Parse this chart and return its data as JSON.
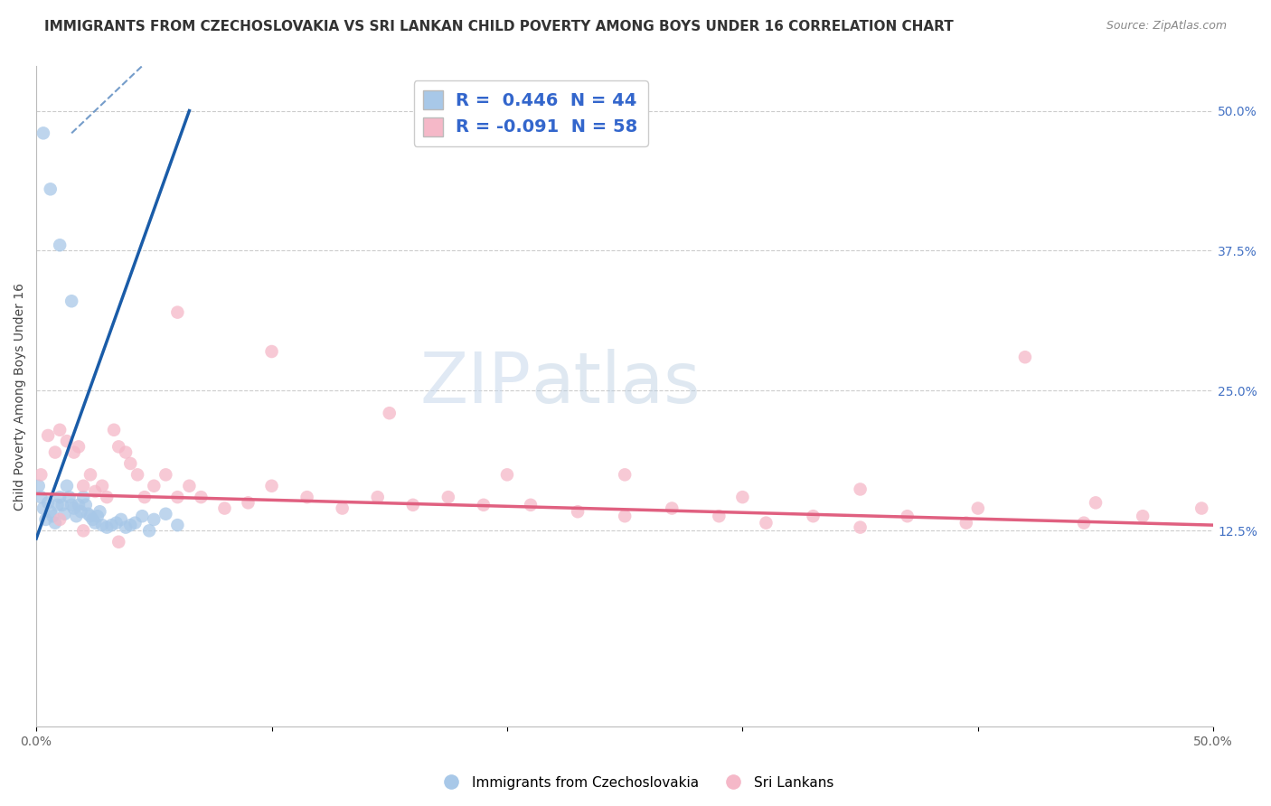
{
  "title": "IMMIGRANTS FROM CZECHOSLOVAKIA VS SRI LANKAN CHILD POVERTY AMONG BOYS UNDER 16 CORRELATION CHART",
  "source": "Source: ZipAtlas.com",
  "ylabel": "Child Poverty Among Boys Under 16",
  "xlim": [
    0.0,
    0.5
  ],
  "ylim": [
    -0.05,
    0.54
  ],
  "yticks_right": [
    0.125,
    0.25,
    0.375,
    0.5
  ],
  "ytick_right_labels": [
    "12.5%",
    "25.0%",
    "37.5%",
    "50.0%"
  ],
  "blue_color": "#a8c8e8",
  "pink_color": "#f5b8c8",
  "blue_line_color": "#1a5ca8",
  "pink_line_color": "#e06080",
  "background_color": "#ffffff",
  "grid_color": "#cccccc",
  "title_fontsize": 11,
  "axis_label_fontsize": 10,
  "tick_fontsize": 10,
  "legend_fontsize": 13,
  "blue_scatter_x": [
    0.001,
    0.002,
    0.003,
    0.004,
    0.005,
    0.006,
    0.007,
    0.008,
    0.009,
    0.01,
    0.011,
    0.012,
    0.013,
    0.014,
    0.015,
    0.016,
    0.017,
    0.018,
    0.019,
    0.02,
    0.021,
    0.022,
    0.023,
    0.024,
    0.025,
    0.026,
    0.027,
    0.028,
    0.03,
    0.032,
    0.034,
    0.036,
    0.038,
    0.04,
    0.042,
    0.045,
    0.048,
    0.05,
    0.055,
    0.06,
    0.003,
    0.006,
    0.01,
    0.015
  ],
  "blue_scatter_y": [
    0.165,
    0.155,
    0.145,
    0.135,
    0.15,
    0.142,
    0.138,
    0.132,
    0.148,
    0.155,
    0.148,
    0.14,
    0.165,
    0.155,
    0.148,
    0.145,
    0.138,
    0.148,
    0.142,
    0.155,
    0.148,
    0.14,
    0.138,
    0.135,
    0.132,
    0.138,
    0.142,
    0.13,
    0.128,
    0.13,
    0.132,
    0.135,
    0.128,
    0.13,
    0.132,
    0.138,
    0.125,
    0.135,
    0.14,
    0.13,
    0.48,
    0.43,
    0.38,
    0.33
  ],
  "pink_scatter_x": [
    0.002,
    0.005,
    0.008,
    0.01,
    0.013,
    0.016,
    0.018,
    0.02,
    0.023,
    0.025,
    0.028,
    0.03,
    0.033,
    0.035,
    0.038,
    0.04,
    0.043,
    0.046,
    0.05,
    0.055,
    0.06,
    0.065,
    0.07,
    0.08,
    0.09,
    0.1,
    0.115,
    0.13,
    0.145,
    0.16,
    0.175,
    0.19,
    0.21,
    0.23,
    0.25,
    0.27,
    0.29,
    0.31,
    0.33,
    0.35,
    0.37,
    0.395,
    0.42,
    0.445,
    0.47,
    0.495,
    0.01,
    0.02,
    0.035,
    0.06,
    0.1,
    0.2,
    0.3,
    0.4,
    0.15,
    0.25,
    0.35,
    0.45
  ],
  "pink_scatter_y": [
    0.175,
    0.21,
    0.195,
    0.215,
    0.205,
    0.195,
    0.2,
    0.165,
    0.175,
    0.16,
    0.165,
    0.155,
    0.215,
    0.2,
    0.195,
    0.185,
    0.175,
    0.155,
    0.165,
    0.175,
    0.155,
    0.165,
    0.155,
    0.145,
    0.15,
    0.165,
    0.155,
    0.145,
    0.155,
    0.148,
    0.155,
    0.148,
    0.148,
    0.142,
    0.138,
    0.145,
    0.138,
    0.132,
    0.138,
    0.128,
    0.138,
    0.132,
    0.28,
    0.132,
    0.138,
    0.145,
    0.135,
    0.125,
    0.115,
    0.32,
    0.285,
    0.175,
    0.155,
    0.145,
    0.23,
    0.175,
    0.162,
    0.15
  ]
}
